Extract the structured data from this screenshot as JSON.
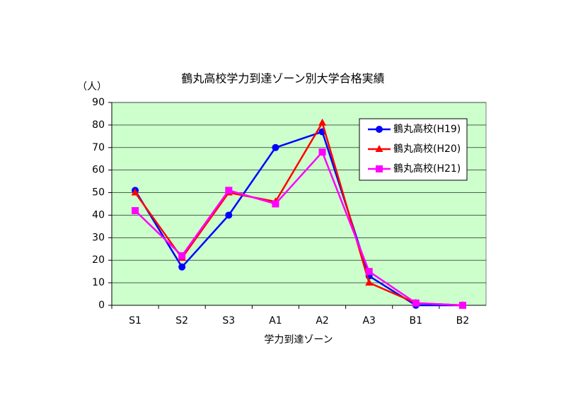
{
  "chart_data": {
    "type": "line",
    "title": "鶴丸高校学力到達ゾーン別大学合格実績",
    "y_label": "（人）",
    "x_label": "学力到達ゾーン",
    "categories": [
      "S1",
      "S2",
      "S3",
      "A1",
      "A2",
      "A3",
      "B1",
      "B2"
    ],
    "series": [
      {
        "name": "鶴丸高校(H19)",
        "color": "#0000ff",
        "marker": "circle",
        "values": [
          51,
          17,
          40,
          70,
          77,
          13,
          0,
          0
        ]
      },
      {
        "name": "鶴丸高校(H20)",
        "color": "#ff0000",
        "marker": "triangle",
        "values": [
          50,
          21,
          50,
          46,
          81,
          10,
          1,
          0
        ]
      },
      {
        "name": "鶴丸高校(H21)",
        "color": "#ff00ff",
        "marker": "square",
        "values": [
          42,
          22,
          51,
          45,
          68,
          15,
          1,
          0
        ]
      }
    ],
    "ylim": [
      0,
      90
    ],
    "yticks": [
      0,
      10,
      20,
      30,
      40,
      50,
      60,
      70,
      80,
      90
    ],
    "grid": true,
    "legend": "upper right",
    "plot_background": "#ccffcc"
  }
}
